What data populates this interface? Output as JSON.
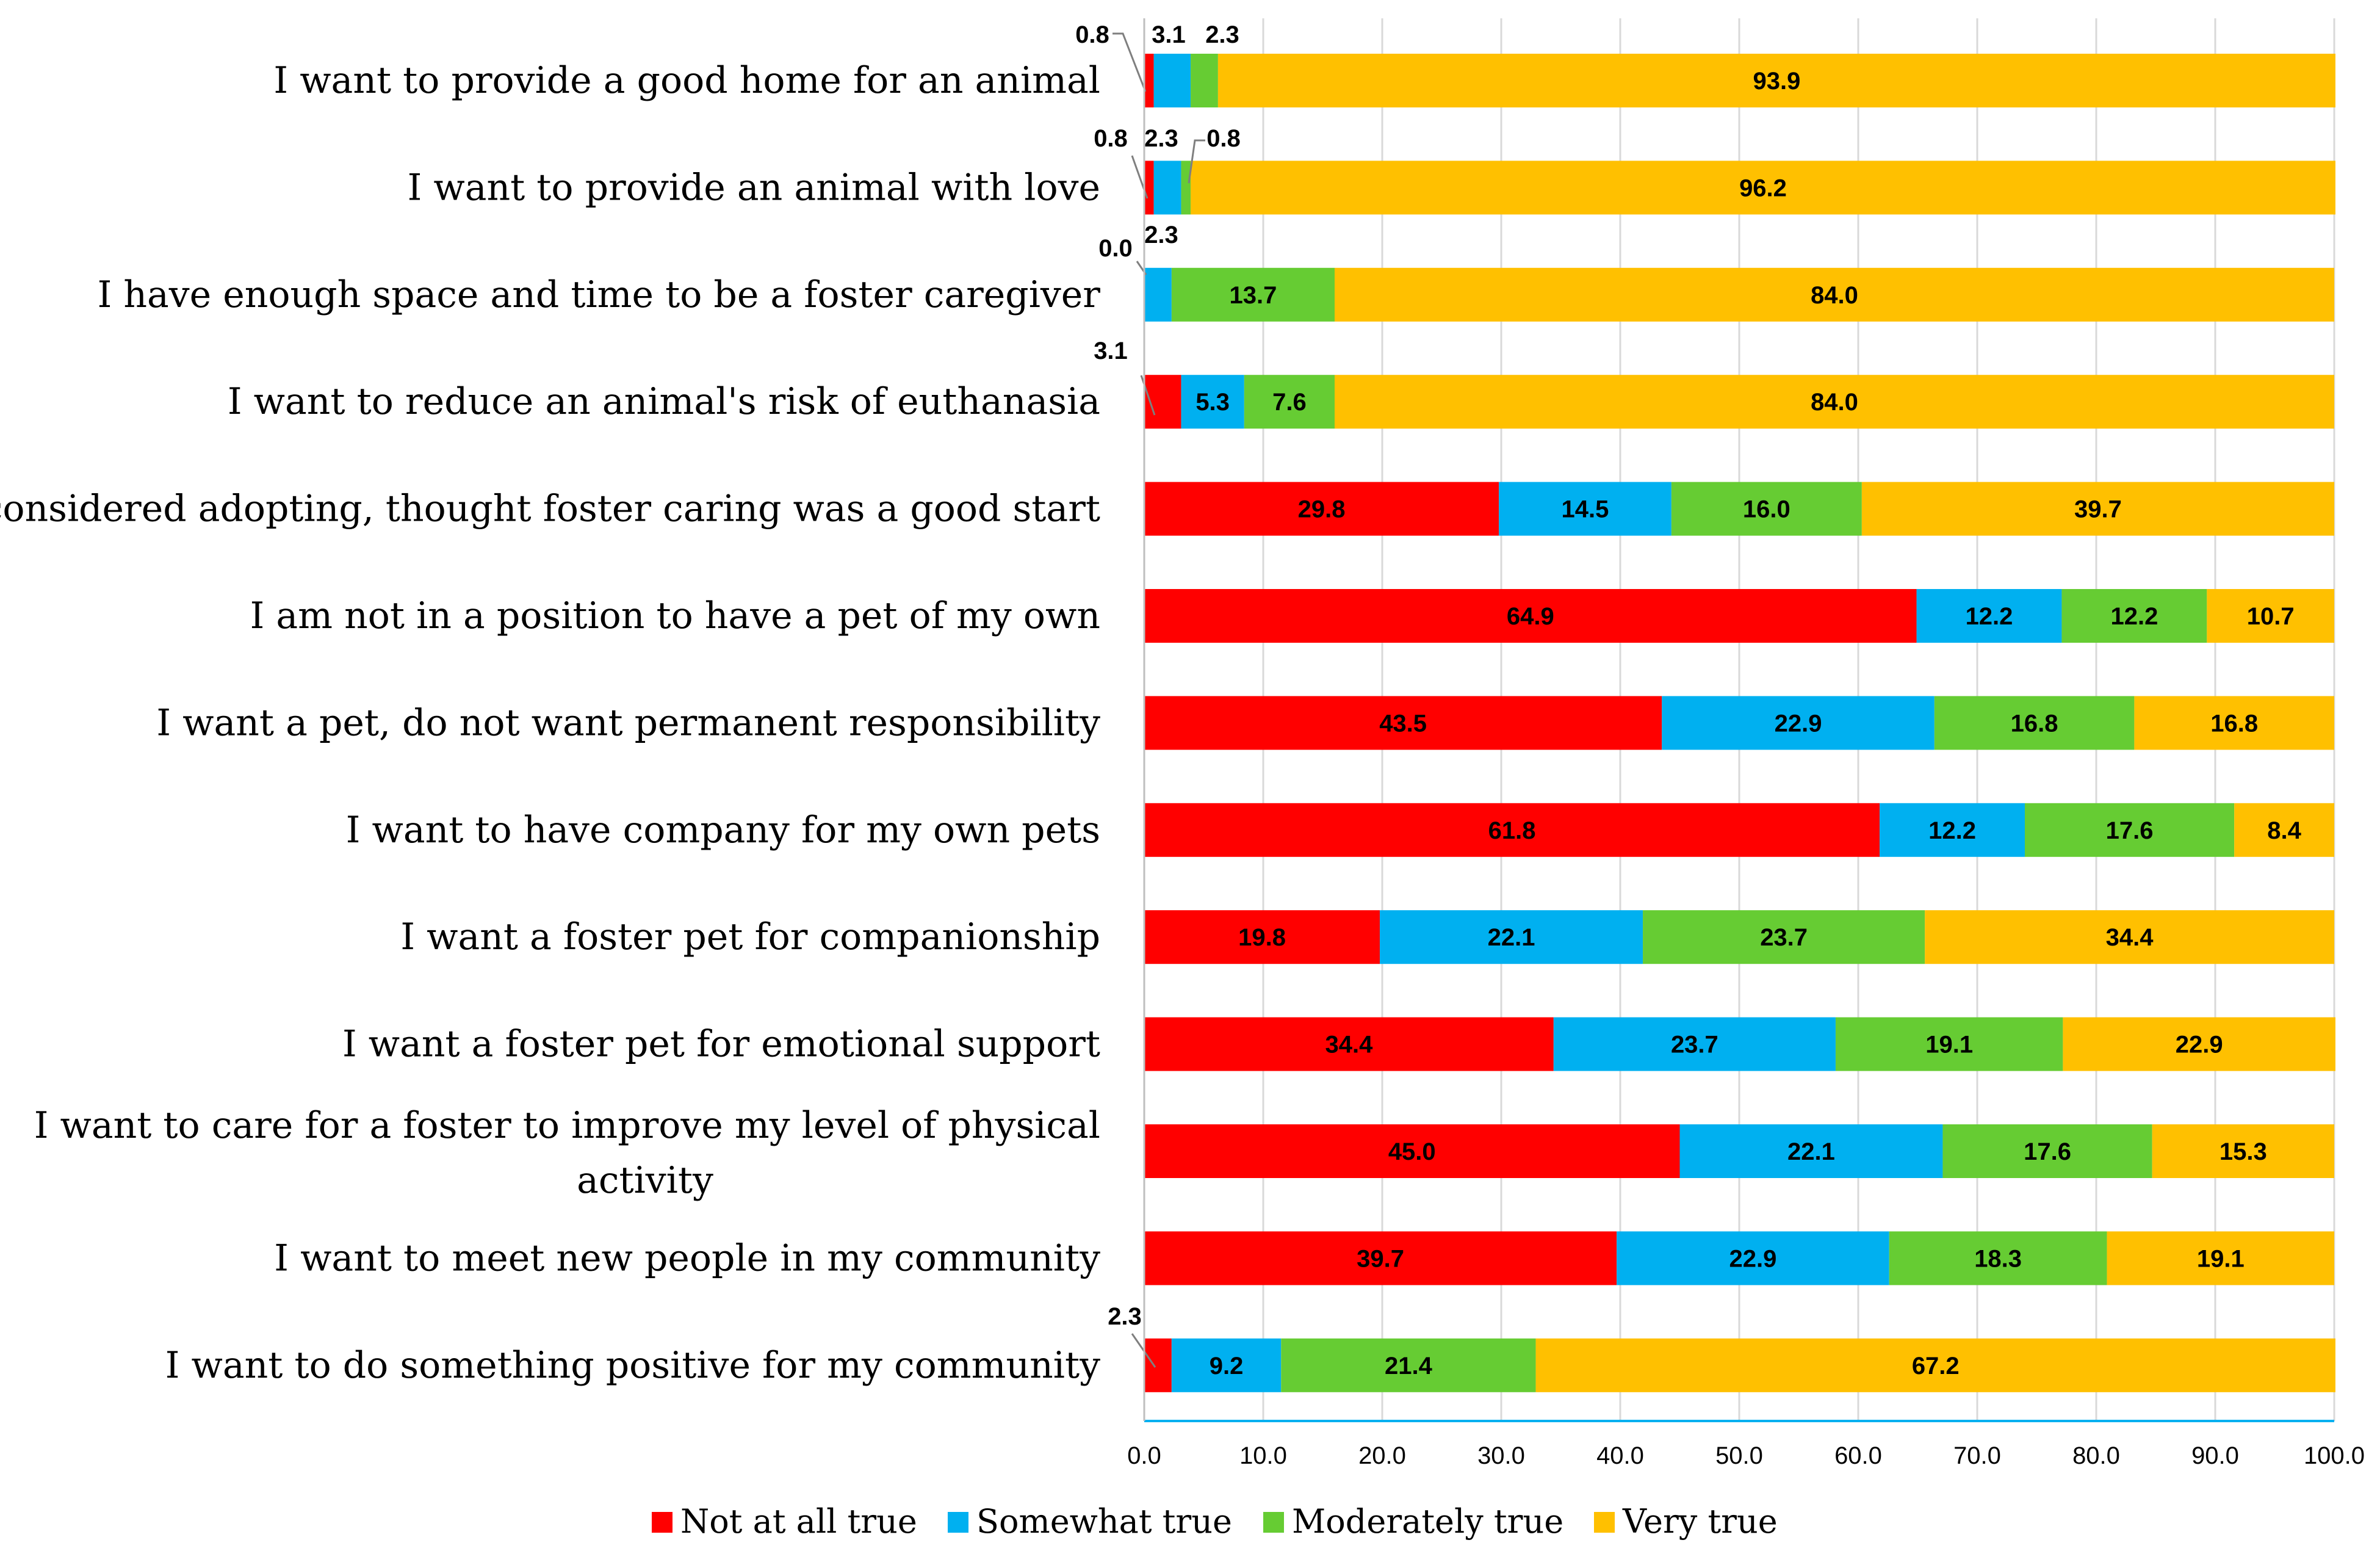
{
  "chart_data": {
    "type": "bar",
    "orientation": "horizontal",
    "stacked": true,
    "title": "",
    "xlabel": "",
    "ylabel": "",
    "xlim": [
      0,
      100
    ],
    "xticks": [
      "0.0",
      "10.0",
      "20.0",
      "30.0",
      "40.0",
      "50.0",
      "60.0",
      "70.0",
      "80.0",
      "90.0",
      "100.0"
    ],
    "grid": true,
    "legend_position": "bottom",
    "categories": [
      "I want to provide a good home for an animal",
      "I want to provide an animal with love",
      "I have enough space and time to be a foster caregiver",
      "I want to reduce an animal's risk of euthanasia",
      "I considered adopting, thought foster caring was a good start",
      "I am not in a position to have a pet of my own",
      "I want a pet, do not want permanent responsibility",
      "I want to have company for my own pets",
      "I want a foster pet for companionship",
      "I want a foster pet for emotional support",
      "I want to care for a foster to improve my level of physical activity",
      "I want to meet new people in my community",
      "I want to do something positive for my community"
    ],
    "series": [
      {
        "name": "Not at all true",
        "color": "#ff0000",
        "values": [
          0.8,
          0.8,
          0.0,
          3.1,
          29.8,
          64.9,
          43.5,
          61.8,
          19.8,
          34.4,
          45.0,
          39.7,
          2.3
        ],
        "labels": [
          "0.8",
          "0.8",
          "0.0",
          "3.1",
          "29.8",
          "64.9",
          "43.5",
          "61.8",
          "19.8",
          "34.4",
          "45.0",
          "39.7",
          "2.3"
        ]
      },
      {
        "name": "Somewhat true",
        "color": "#00b0f0",
        "values": [
          3.1,
          2.3,
          2.3,
          5.3,
          14.5,
          12.2,
          22.9,
          12.2,
          22.1,
          23.7,
          22.1,
          22.9,
          9.2
        ],
        "labels": [
          "3.1",
          "2.3",
          "2.3",
          "5.3",
          "14.5",
          "12.2",
          "22.9",
          "12.2",
          "22.1",
          "23.7",
          "22.1",
          "22.9",
          "9.2"
        ]
      },
      {
        "name": "Moderately true",
        "color": "#66cc33",
        "values": [
          2.3,
          0.8,
          13.7,
          7.6,
          16.0,
          12.2,
          16.8,
          17.6,
          23.7,
          19.1,
          17.6,
          18.3,
          21.4
        ],
        "labels": [
          "2.3",
          "0.8",
          "13.7",
          "7.6",
          "16.0",
          "12.2",
          "16.8",
          "17.6",
          "23.7",
          "19.1",
          "17.6",
          "18.3",
          "21.4"
        ]
      },
      {
        "name": "Very true",
        "color": "#ffc000",
        "values": [
          93.9,
          96.2,
          84.0,
          84.0,
          39.7,
          10.7,
          16.8,
          8.4,
          34.4,
          22.9,
          15.3,
          19.1,
          67.2
        ],
        "labels": [
          "93.9",
          "96.2",
          "84.0",
          "84.0",
          "39.7",
          "10.7",
          "16.8",
          "8.4",
          "34.4",
          "22.9",
          "15.3",
          "19.1",
          "67.2"
        ]
      }
    ]
  }
}
